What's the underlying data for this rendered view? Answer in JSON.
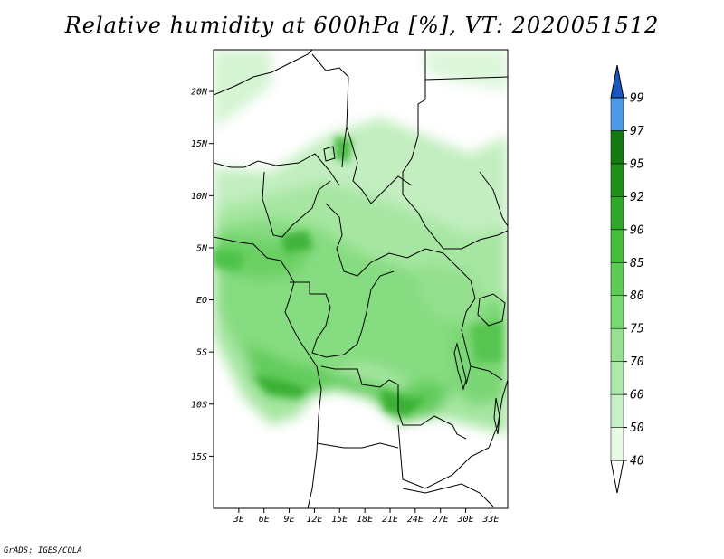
{
  "title": "Relative humidity at 600hPa [%], VT: 2020051512",
  "credit": "GrADS: IGES/COLA",
  "map": {
    "variable": "Relative humidity",
    "level": "600hPa",
    "units": "%",
    "valid_time": "2020051512",
    "lon_range": [
      0,
      35
    ],
    "lat_range": [
      -20,
      24
    ],
    "lat_ticks": [
      {
        "value": 20,
        "label": "20N"
      },
      {
        "value": 15,
        "label": "15N"
      },
      {
        "value": 10,
        "label": "10N"
      },
      {
        "value": 5,
        "label": "5N"
      },
      {
        "value": 0,
        "label": "EQ"
      },
      {
        "value": -5,
        "label": "5S"
      },
      {
        "value": -10,
        "label": "10S"
      },
      {
        "value": -15,
        "label": "15S"
      }
    ],
    "lon_ticks": [
      {
        "value": 3,
        "label": "3E"
      },
      {
        "value": 6,
        "label": "6E"
      },
      {
        "value": 9,
        "label": "9E"
      },
      {
        "value": 12,
        "label": "12E"
      },
      {
        "value": 15,
        "label": "15E"
      },
      {
        "value": 18,
        "label": "18E"
      },
      {
        "value": 21,
        "label": "21E"
      },
      {
        "value": 24,
        "label": "24E"
      },
      {
        "value": 27,
        "label": "27E"
      },
      {
        "value": 30,
        "label": "30E"
      },
      {
        "value": 33,
        "label": "33E"
      }
    ]
  },
  "colorbar": {
    "levels": [
      40,
      50,
      60,
      70,
      75,
      80,
      85,
      90,
      92,
      95,
      97,
      99
    ],
    "labels": [
      "40",
      "50",
      "60",
      "70",
      "75",
      "80",
      "85",
      "90",
      "92",
      "95",
      "97",
      "99"
    ],
    "colors": [
      "#e6fae6",
      "#c8f0c8",
      "#aee8aa",
      "#96e092",
      "#78d872",
      "#5ccc56",
      "#44be3c",
      "#2ea828",
      "#1e9018",
      "#127a10",
      "#4a9ae8",
      "#2e74d8",
      "#1a58c0"
    ]
  }
}
